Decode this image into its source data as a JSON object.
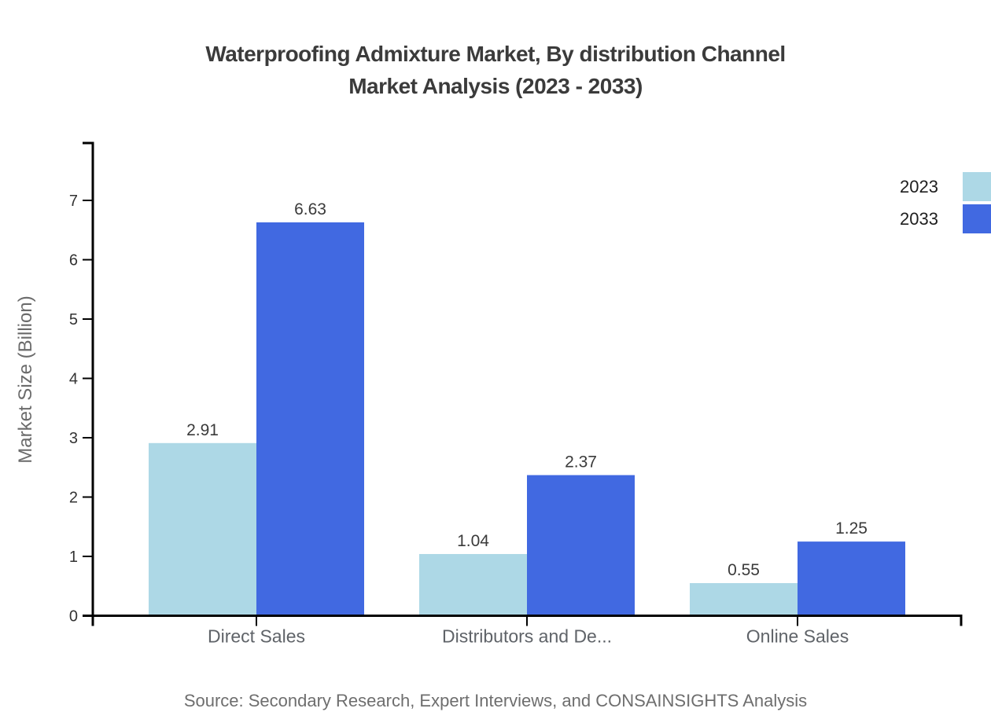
{
  "title": {
    "line1": "Waterproofing Admixture Market, By distribution Channel",
    "line2": "Market Analysis (2023 - 2033)"
  },
  "y_axis": {
    "label": "Market Size (Billion)"
  },
  "legend": {
    "items": [
      {
        "label": "2023",
        "color": "#ADD8E6"
      },
      {
        "label": "2033",
        "color": "#4169E1"
      }
    ]
  },
  "source_note": "Source: Secondary Research, Expert Interviews, and CONSAINSIGHTS Analysis",
  "colors": {
    "series_2023": "#ADD8E6",
    "series_2033": "#4169E1",
    "axis": "#000000",
    "tick_label": "#333333",
    "value_label": "#3a3a3a",
    "category_label": "#5f6368",
    "title_text": "#3b3b3b",
    "muted_text": "#6e6e6e"
  },
  "chart_data": {
    "type": "bar",
    "title": "Waterproofing Admixture Market, By distribution Channel Market Analysis (2023 - 2033)",
    "categories": [
      "Direct Sales",
      "Distributors and De...",
      "Online Sales"
    ],
    "series": [
      {
        "name": "2023",
        "color": "#ADD8E6",
        "values": [
          2.91,
          1.04,
          0.55
        ]
      },
      {
        "name": "2033",
        "color": "#4169E1",
        "values": [
          6.63,
          2.37,
          1.25
        ]
      }
    ],
    "xlabel": "",
    "ylabel": "Market Size (Billion)",
    "yticks": [
      0,
      1,
      2,
      3,
      4,
      5,
      6,
      7
    ],
    "ylim": [
      0,
      7.96
    ],
    "grid": false,
    "legend_position": "top-right",
    "value_label_format": "2-decimals"
  }
}
